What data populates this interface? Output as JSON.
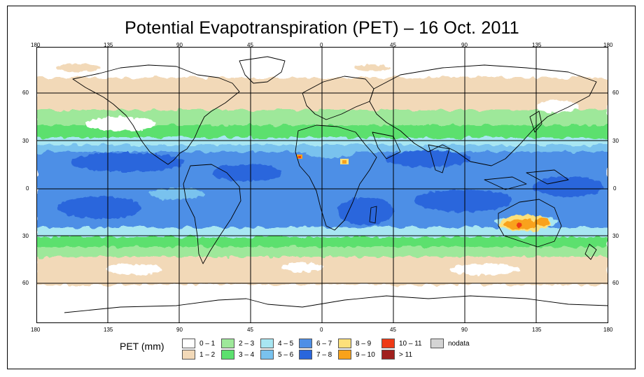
{
  "title": "Potential Evapotranspiration (PET) – 16 Oct. 2011",
  "lon_labels": [
    "180",
    "135",
    "90",
    "45",
    "0",
    "45",
    "90",
    "135",
    "180"
  ],
  "lat_labels": [
    "60",
    "30",
    "0",
    "30",
    "60"
  ],
  "legend": {
    "title": "PET (mm)",
    "items": [
      {
        "label": "0 – 1",
        "color": "#ffffff"
      },
      {
        "label": "1 – 2",
        "color": "#f2d9b8"
      },
      {
        "label": "2 – 3",
        "color": "#9ee89a"
      },
      {
        "label": "3 – 4",
        "color": "#5ce06e"
      },
      {
        "label": "4 – 5",
        "color": "#a8e6f2"
      },
      {
        "label": "5 – 6",
        "color": "#79c2ee"
      },
      {
        "label": "6 – 7",
        "color": "#4e8fe6"
      },
      {
        "label": "7 – 8",
        "color": "#2a66dc"
      },
      {
        "label": "8 – 9",
        "color": "#fde07a"
      },
      {
        "label": "9 – 10",
        "color": "#f9a21a"
      },
      {
        "label": "10 – 11",
        "color": "#ee3a16"
      },
      {
        "label": "> 11",
        "color": "#a0201e"
      },
      {
        "label": "nodata",
        "color": "#d4d4d4"
      }
    ]
  }
}
